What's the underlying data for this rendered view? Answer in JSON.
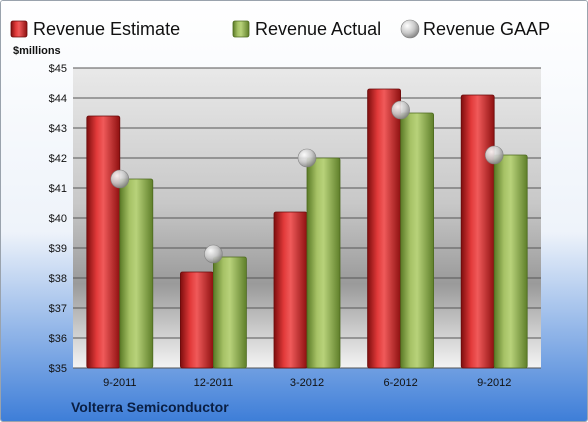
{
  "chart_data": {
    "type": "bar",
    "unit_label": "$millions",
    "company": "Volterra Semiconductor",
    "categories": [
      "9-2011",
      "12-2011",
      "3-2012",
      "6-2012",
      "9-2012"
    ],
    "series": [
      {
        "name": "Revenue Estimate",
        "kind": "bar",
        "color": "#cc1f1f",
        "values": [
          43.4,
          38.2,
          40.2,
          44.3,
          44.1
        ]
      },
      {
        "name": "Revenue Actual",
        "kind": "bar",
        "color": "#8caa4a",
        "values": [
          41.3,
          38.7,
          42.0,
          43.5,
          42.1
        ]
      },
      {
        "name": "Revenue GAAP",
        "kind": "marker",
        "color": "#c8c8c8",
        "values": [
          41.3,
          38.8,
          42.0,
          43.6,
          42.1
        ]
      }
    ],
    "y_ticks": [
      "$35",
      "$36",
      "$37",
      "$38",
      "$39",
      "$40",
      "$41",
      "$42",
      "$43",
      "$44",
      "$45"
    ],
    "ylim": [
      35,
      45
    ],
    "grid": true,
    "legend_position": "top"
  }
}
